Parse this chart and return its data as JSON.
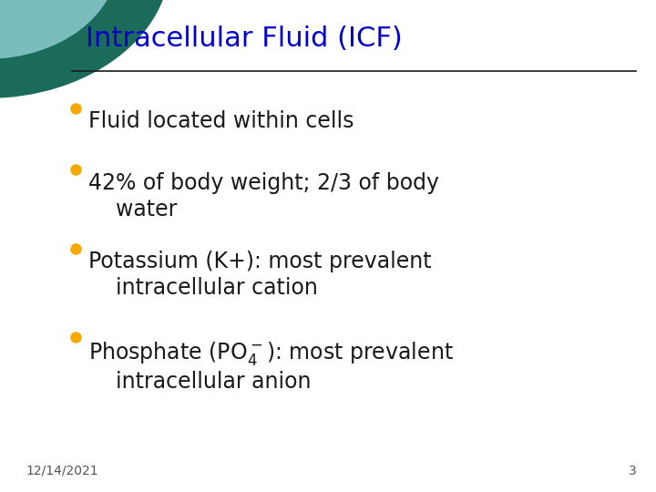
{
  "title": "Intracellular Fluid (ICF)",
  "title_color": "#0000CC",
  "background_color": "#FFFFFF",
  "bullet_color": "#F5A800",
  "text_color": "#1A1A1A",
  "footer_date": "12/14/2021",
  "footer_page": "3",
  "circle_outer_color": "#1A6B5A",
  "circle_inner_color": "#7BBCBC",
  "line_color": "#1A1A1A",
  "title_fontsize": 22,
  "bullet_fontsize": 17,
  "footer_fontsize": 10,
  "fig_width": 7.2,
  "fig_height": 5.4,
  "dpi": 100
}
